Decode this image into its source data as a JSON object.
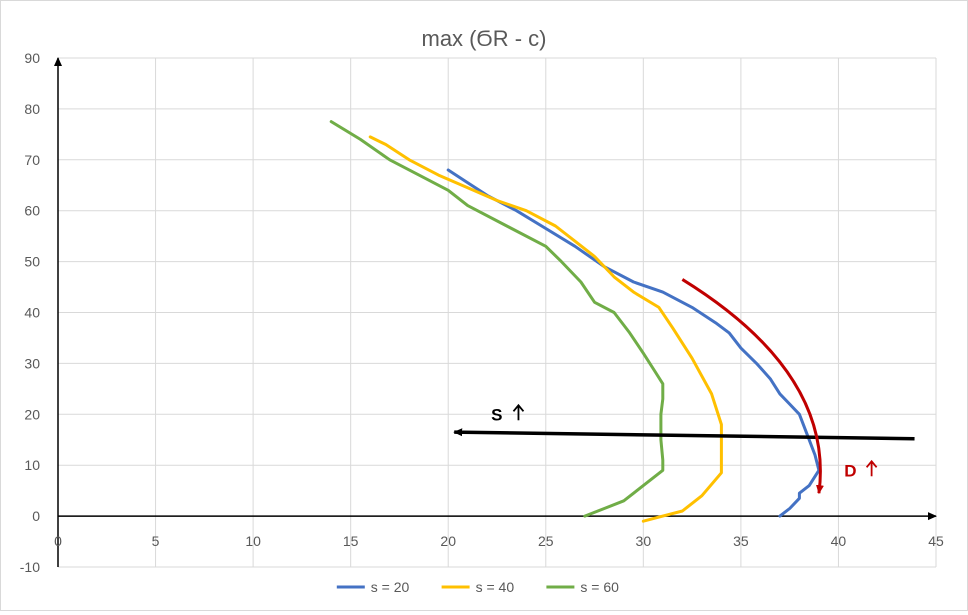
{
  "chart_data": {
    "type": "line",
    "title": "max (ϬR - c)",
    "xlabel": "",
    "ylabel": "",
    "xlim": [
      0,
      45
    ],
    "ylim": [
      -10,
      90
    ],
    "x_ticks": [
      0,
      5,
      10,
      15,
      20,
      25,
      30,
      35,
      40,
      45
    ],
    "y_ticks": [
      -10,
      0,
      10,
      20,
      30,
      40,
      50,
      60,
      70,
      80,
      90
    ],
    "grid": true,
    "legend_position": "bottom",
    "series": [
      {
        "name": "s = 20",
        "color": "#4472c4",
        "points": [
          [
            37,
            0
          ],
          [
            37.5,
            1.5
          ],
          [
            38,
            3.5
          ],
          [
            38,
            4.5
          ],
          [
            38.5,
            6
          ],
          [
            39,
            9
          ],
          [
            38.8,
            12
          ],
          [
            38.5,
            15
          ],
          [
            38,
            20
          ],
          [
            37.5,
            22
          ],
          [
            37,
            24
          ],
          [
            36.5,
            27
          ],
          [
            35.8,
            30
          ],
          [
            35,
            33
          ],
          [
            34.4,
            36
          ],
          [
            33.7,
            38
          ],
          [
            32.5,
            41
          ],
          [
            31,
            44
          ],
          [
            29.5,
            46
          ],
          [
            28,
            49
          ],
          [
            26.5,
            53
          ],
          [
            25,
            56.5
          ],
          [
            23.5,
            60
          ],
          [
            22,
            63
          ],
          [
            21,
            65.5
          ],
          [
            20,
            68
          ]
        ]
      },
      {
        "name": "s = 40",
        "color": "#ffc000",
        "points": [
          [
            30,
            -1
          ],
          [
            31,
            0
          ],
          [
            32,
            1
          ],
          [
            33,
            4
          ],
          [
            34,
            8.5
          ],
          [
            34,
            12
          ],
          [
            34,
            15
          ],
          [
            34,
            18
          ],
          [
            33.5,
            24
          ],
          [
            32.5,
            31
          ],
          [
            31.5,
            37
          ],
          [
            30.8,
            41
          ],
          [
            29.5,
            44
          ],
          [
            28.5,
            47
          ],
          [
            27.5,
            51
          ],
          [
            26.5,
            54
          ],
          [
            25.5,
            57
          ],
          [
            24,
            60
          ],
          [
            22.5,
            62
          ],
          [
            21,
            64.5
          ],
          [
            19.5,
            67
          ],
          [
            18,
            70
          ],
          [
            16.8,
            73
          ],
          [
            16,
            74.5
          ]
        ]
      },
      {
        "name": "s = 60",
        "color": "#70ad47",
        "points": [
          [
            27,
            0
          ],
          [
            28,
            1.5
          ],
          [
            29,
            3
          ],
          [
            30,
            6
          ],
          [
            31,
            9
          ],
          [
            31,
            11
          ],
          [
            30.9,
            15
          ],
          [
            30.9,
            20
          ],
          [
            31,
            23
          ],
          [
            31,
            26
          ],
          [
            30.5,
            29
          ],
          [
            30,
            32
          ],
          [
            29.3,
            36
          ],
          [
            28.5,
            40
          ],
          [
            27.5,
            42
          ],
          [
            26.8,
            46
          ],
          [
            25.8,
            50
          ],
          [
            25,
            53
          ],
          [
            23,
            57
          ],
          [
            21,
            61
          ],
          [
            20,
            64
          ],
          [
            18.5,
            67
          ],
          [
            17,
            70
          ],
          [
            15.5,
            74
          ],
          [
            14,
            77.5
          ]
        ]
      }
    ],
    "annotations": [
      {
        "label": "S",
        "color": "#000000",
        "arrow_from": [
          43.9,
          15.2
        ],
        "arrow_to": [
          20,
          16.5
        ],
        "text_pos": [
          22.2,
          20
        ],
        "glyph_pos": [
          23.6,
          20.2
        ]
      },
      {
        "label": "D",
        "color": "#c00000",
        "arrow_from": [
          32,
          46.5
        ],
        "arrow_to": [
          39,
          4.5
        ],
        "text_pos": [
          40.3,
          9
        ],
        "glyph_pos": [
          41.7,
          9.2
        ]
      }
    ]
  }
}
